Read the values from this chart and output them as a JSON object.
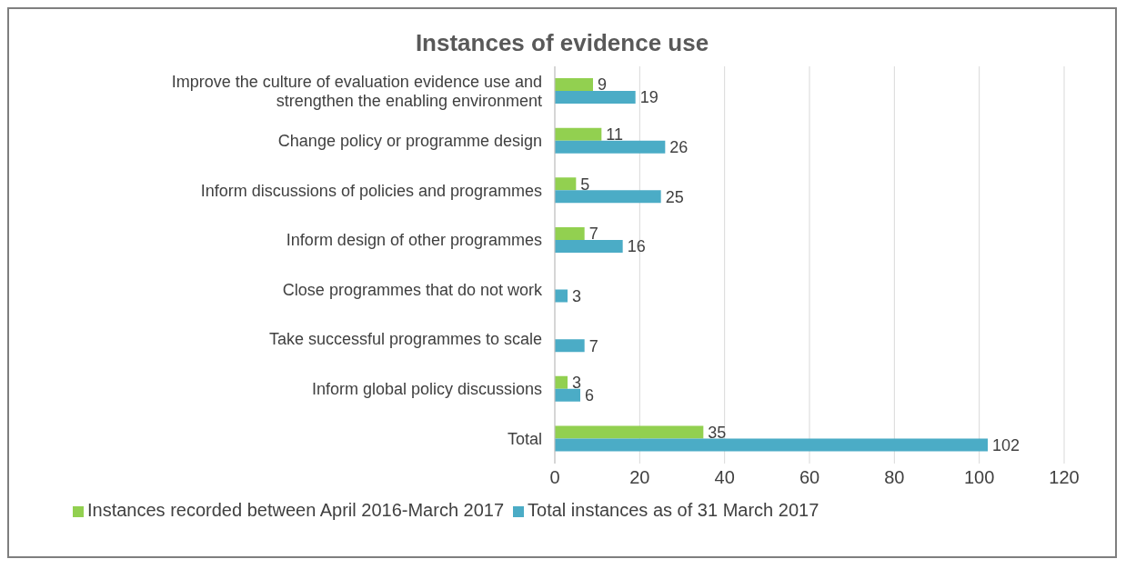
{
  "chart_data": {
    "type": "bar",
    "orientation": "horizontal",
    "title": "Instances of evidence use",
    "categories": [
      "Improve the culture of evaluation evidence use and strengthen the enabling environment",
      "Change policy or programme design",
      "Inform discussions of policies and programmes",
      "Inform design of other programmes",
      "Close programmes that do not work",
      "Take successful programmes to scale",
      "Inform global policy discussions",
      "Total"
    ],
    "series": [
      {
        "name": "Instances recorded between April 2016-March 2017",
        "color": "#92d050",
        "values": [
          9,
          11,
          5,
          7,
          null,
          null,
          3,
          35
        ]
      },
      {
        "name": "Total instances as of 31 March 2017",
        "color": "#4bacc6",
        "values": [
          19,
          26,
          25,
          16,
          3,
          7,
          6,
          102
        ]
      }
    ],
    "xlim": [
      0,
      120
    ],
    "xticks": [
      0,
      20,
      40,
      60,
      80,
      100,
      120
    ],
    "grid": "x",
    "legend": "bottom",
    "data_labels": true
  }
}
